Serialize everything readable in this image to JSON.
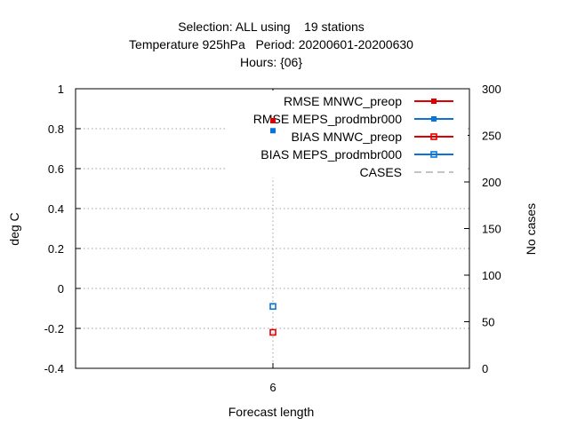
{
  "title_lines": [
    "Selection: ALL using    19 stations",
    "Temperature 925hPa   Period: 20200601-20200630",
    "Hours: {06}"
  ],
  "chart_data": {
    "type": "scatter",
    "x": [
      6
    ],
    "x_tick_labels": [
      "6"
    ],
    "xlabel": "Forecast length",
    "ylabel": "deg C",
    "y2label": "No cases",
    "ylim": [
      -0.4,
      1.0
    ],
    "y_ticks": [
      -0.4,
      -0.2,
      0,
      0.2,
      0.4,
      0.6,
      0.8,
      1
    ],
    "y_tick_labels": [
      "-0.4",
      "-0.2",
      "0",
      "0.2",
      "0.4",
      "0.6",
      "0.8",
      "1"
    ],
    "y2lim": [
      0,
      300
    ],
    "y2_ticks": [
      0,
      50,
      100,
      150,
      200,
      250,
      300
    ],
    "y2_tick_labels": [
      "0",
      "50",
      "100",
      "150",
      "200",
      "250",
      "300"
    ],
    "grid": true,
    "legend_position": "top-right",
    "series": [
      {
        "name": "RMSE MNWC_preop",
        "values": [
          0.84
        ],
        "color": "#e00000",
        "marker": "filled-square",
        "axis": "y"
      },
      {
        "name": "RMSE MEPS_prodmbr000",
        "values": [
          0.79
        ],
        "color": "#0a74d6",
        "marker": "filled-square",
        "axis": "y"
      },
      {
        "name": "BIAS MNWC_preop",
        "values": [
          -0.22
        ],
        "color": "#e00000",
        "marker": "open-square",
        "axis": "y"
      },
      {
        "name": "BIAS MEPS_prodmbr000",
        "values": [
          -0.09
        ],
        "color": "#0a74d6",
        "marker": "open-square",
        "axis": "y"
      },
      {
        "name": "CASES",
        "values": [],
        "color": "#a0a0a0",
        "marker": "dashed-line",
        "axis": "y2"
      }
    ]
  }
}
